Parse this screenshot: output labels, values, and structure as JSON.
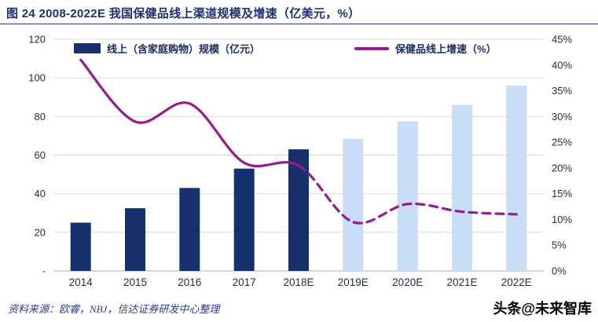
{
  "header": {
    "title": "图 24 2008-2022E 我国保健品线上渠道规模及增速（亿美元，%）"
  },
  "legend": {
    "bar_series": "线上（含家庭购物）规模（亿元）",
    "line_series": "保健品线上增速（%）"
  },
  "footer": {
    "source": "资料来源：欧睿，NBJ，信达证券研发中心整理",
    "watermark": "头条@未来智库"
  },
  "colors": {
    "bar_actual": "#16316e",
    "bar_forecast": "#c9dcf5",
    "line": "#951c8d",
    "title_text": "#1c2f6e",
    "legend_text": "#1a2c5e",
    "axis_text": "#1f2a44",
    "gridline": "#d9d9d9",
    "axis_line": "#aab0b8",
    "source_text": "#2f3a8c"
  },
  "chart_data": {
    "type": "bar+line",
    "title": "图 24 2008-2022E 我国保健品线上渠道规模及增速（亿美元，%）",
    "categories": [
      "2014",
      "2015",
      "2016",
      "2017",
      "2018E",
      "2019E",
      "2020E",
      "2021E",
      "2022E"
    ],
    "series": [
      {
        "name": "线上（含家庭购物）规模（亿元）",
        "type": "bar",
        "axis": "left",
        "values": [
          25,
          32.5,
          43,
          53,
          63,
          68.5,
          77.5,
          86,
          96
        ],
        "forecast_from_index": 5
      },
      {
        "name": "保健品线上增速（%）",
        "type": "line",
        "axis": "right",
        "values": [
          41,
          29,
          32.5,
          21,
          20.5,
          9.5,
          13,
          11.5,
          11
        ],
        "solid_until_index": 4
      }
    ],
    "left_axis": {
      "min": 0,
      "max": 120,
      "tick_values": [
        120,
        100,
        80,
        60,
        40,
        20,
        0
      ],
      "tick_labels": [
        "120",
        "100",
        "80",
        "60",
        "40",
        "20",
        "-"
      ]
    },
    "right_axis": {
      "min": 0,
      "max": 45,
      "tick_values": [
        45,
        40,
        35,
        30,
        25,
        20,
        15,
        10,
        5,
        0
      ],
      "tick_labels": [
        "45%",
        "40%",
        "35%",
        "30%",
        "25%",
        "20%",
        "15%",
        "10%",
        "5%",
        "0%"
      ]
    },
    "legend_position": "top",
    "grid": true
  }
}
